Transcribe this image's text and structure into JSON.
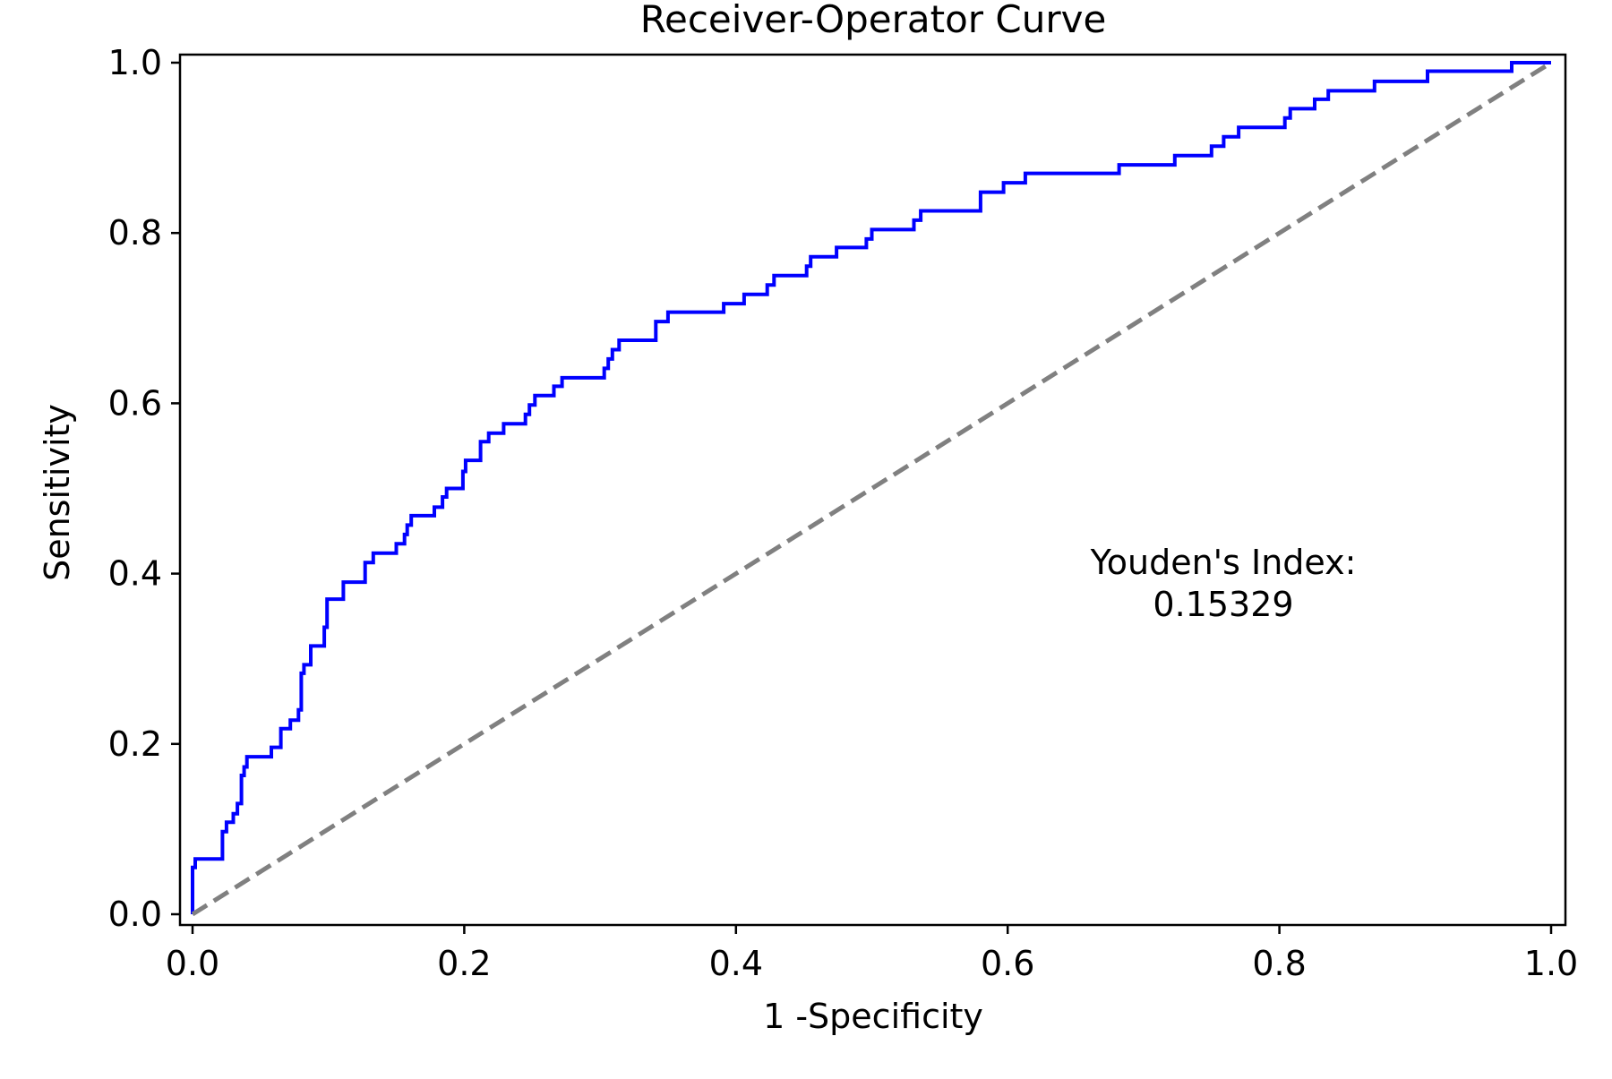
{
  "chart_data": {
    "type": "line",
    "title": "Receiver-Operator Curve",
    "xlabel": "1 -Specificity",
    "ylabel": "Sensitivity",
    "xlim": [
      0.0,
      1.0
    ],
    "ylim": [
      0.0,
      1.0
    ],
    "x_ticks": [
      "0.0",
      "0.2",
      "0.4",
      "0.6",
      "0.8",
      "1.0"
    ],
    "y_ticks": [
      "0.0",
      "0.2",
      "0.4",
      "0.6",
      "0.8",
      "1.0"
    ],
    "grid": false,
    "annotation": {
      "line1": "Youden's Index:",
      "line2": "0.15329"
    },
    "series": [
      {
        "color": "#0000ff",
        "style": "step",
        "points": [
          [
            0.0,
            0.0
          ],
          [
            0.0,
            0.055
          ],
          [
            0.002,
            0.055
          ],
          [
            0.002,
            0.065
          ],
          [
            0.022,
            0.065
          ],
          [
            0.022,
            0.097
          ],
          [
            0.025,
            0.097
          ],
          [
            0.025,
            0.108
          ],
          [
            0.03,
            0.108
          ],
          [
            0.03,
            0.118
          ],
          [
            0.033,
            0.118
          ],
          [
            0.033,
            0.13
          ],
          [
            0.036,
            0.13
          ],
          [
            0.036,
            0.163
          ],
          [
            0.038,
            0.163
          ],
          [
            0.038,
            0.173
          ],
          [
            0.04,
            0.173
          ],
          [
            0.04,
            0.185
          ],
          [
            0.058,
            0.185
          ],
          [
            0.058,
            0.196
          ],
          [
            0.065,
            0.196
          ],
          [
            0.065,
            0.218
          ],
          [
            0.072,
            0.218
          ],
          [
            0.072,
            0.228
          ],
          [
            0.078,
            0.228
          ],
          [
            0.078,
            0.24
          ],
          [
            0.08,
            0.24
          ],
          [
            0.08,
            0.283
          ],
          [
            0.082,
            0.283
          ],
          [
            0.082,
            0.293
          ],
          [
            0.087,
            0.293
          ],
          [
            0.087,
            0.315
          ],
          [
            0.097,
            0.315
          ],
          [
            0.097,
            0.337
          ],
          [
            0.099,
            0.337
          ],
          [
            0.099,
            0.37
          ],
          [
            0.111,
            0.37
          ],
          [
            0.111,
            0.39
          ],
          [
            0.127,
            0.39
          ],
          [
            0.127,
            0.413
          ],
          [
            0.133,
            0.413
          ],
          [
            0.133,
            0.424
          ],
          [
            0.15,
            0.424
          ],
          [
            0.15,
            0.435
          ],
          [
            0.156,
            0.435
          ],
          [
            0.156,
            0.446
          ],
          [
            0.158,
            0.446
          ],
          [
            0.158,
            0.457
          ],
          [
            0.161,
            0.457
          ],
          [
            0.161,
            0.468
          ],
          [
            0.178,
            0.468
          ],
          [
            0.178,
            0.478
          ],
          [
            0.184,
            0.478
          ],
          [
            0.184,
            0.49
          ],
          [
            0.187,
            0.49
          ],
          [
            0.187,
            0.5
          ],
          [
            0.199,
            0.5
          ],
          [
            0.199,
            0.52
          ],
          [
            0.201,
            0.52
          ],
          [
            0.201,
            0.533
          ],
          [
            0.212,
            0.533
          ],
          [
            0.212,
            0.555
          ],
          [
            0.218,
            0.555
          ],
          [
            0.218,
            0.565
          ],
          [
            0.229,
            0.565
          ],
          [
            0.229,
            0.576
          ],
          [
            0.245,
            0.576
          ],
          [
            0.245,
            0.587
          ],
          [
            0.248,
            0.587
          ],
          [
            0.248,
            0.598
          ],
          [
            0.252,
            0.598
          ],
          [
            0.252,
            0.609
          ],
          [
            0.266,
            0.609
          ],
          [
            0.266,
            0.62
          ],
          [
            0.272,
            0.62
          ],
          [
            0.272,
            0.63
          ],
          [
            0.303,
            0.63
          ],
          [
            0.303,
            0.641
          ],
          [
            0.306,
            0.641
          ],
          [
            0.306,
            0.652
          ],
          [
            0.309,
            0.652
          ],
          [
            0.309,
            0.663
          ],
          [
            0.314,
            0.663
          ],
          [
            0.314,
            0.674
          ],
          [
            0.341,
            0.674
          ],
          [
            0.341,
            0.696
          ],
          [
            0.35,
            0.696
          ],
          [
            0.35,
            0.707
          ],
          [
            0.391,
            0.707
          ],
          [
            0.391,
            0.717
          ],
          [
            0.406,
            0.717
          ],
          [
            0.406,
            0.728
          ],
          [
            0.423,
            0.728
          ],
          [
            0.423,
            0.739
          ],
          [
            0.428,
            0.739
          ],
          [
            0.428,
            0.75
          ],
          [
            0.452,
            0.75
          ],
          [
            0.452,
            0.761
          ],
          [
            0.455,
            0.761
          ],
          [
            0.455,
            0.772
          ],
          [
            0.474,
            0.772
          ],
          [
            0.474,
            0.783
          ],
          [
            0.496,
            0.783
          ],
          [
            0.496,
            0.793
          ],
          [
            0.5,
            0.793
          ],
          [
            0.5,
            0.804
          ],
          [
            0.531,
            0.804
          ],
          [
            0.531,
            0.815
          ],
          [
            0.536,
            0.815
          ],
          [
            0.536,
            0.826
          ],
          [
            0.58,
            0.826
          ],
          [
            0.58,
            0.848
          ],
          [
            0.597,
            0.848
          ],
          [
            0.597,
            0.859
          ],
          [
            0.613,
            0.859
          ],
          [
            0.613,
            0.87
          ],
          [
            0.682,
            0.87
          ],
          [
            0.682,
            0.88
          ],
          [
            0.723,
            0.88
          ],
          [
            0.723,
            0.891
          ],
          [
            0.75,
            0.891
          ],
          [
            0.75,
            0.902
          ],
          [
            0.759,
            0.902
          ],
          [
            0.759,
            0.913
          ],
          [
            0.77,
            0.913
          ],
          [
            0.77,
            0.924
          ],
          [
            0.804,
            0.924
          ],
          [
            0.804,
            0.935
          ],
          [
            0.808,
            0.935
          ],
          [
            0.808,
            0.946
          ],
          [
            0.826,
            0.946
          ],
          [
            0.826,
            0.957
          ],
          [
            0.836,
            0.957
          ],
          [
            0.836,
            0.967
          ],
          [
            0.87,
            0.967
          ],
          [
            0.87,
            0.978
          ],
          [
            0.909,
            0.978
          ],
          [
            0.909,
            0.99
          ],
          [
            0.971,
            0.99
          ],
          [
            0.971,
            1.0
          ],
          [
            1.0,
            1.0
          ]
        ]
      },
      {
        "color": "#808080",
        "style": "dashed",
        "points": [
          [
            0.0,
            0.0
          ],
          [
            1.0,
            1.0
          ]
        ]
      }
    ]
  }
}
